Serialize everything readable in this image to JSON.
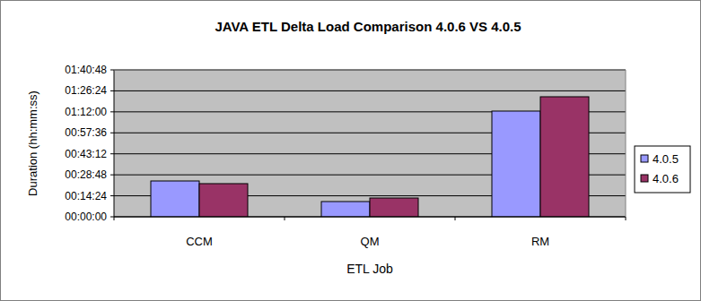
{
  "chart_data": {
    "type": "bar",
    "title": "JAVA ETL Delta Load Comparison 4.0.6 VS 4.0.5",
    "x_label": "ETL Job",
    "y_label": "Duration (hh:mm:ss)",
    "categories": [
      "CCM",
      "QM",
      "RM"
    ],
    "series": [
      {
        "name": "4.0.5",
        "color": "#9999ff",
        "values": [
          1475,
          627,
          4352
        ]
      },
      {
        "name": "4.0.6",
        "color": "#993366",
        "values": [
          1365,
          774,
          4942
        ]
      }
    ],
    "ylim": [
      0,
      6048
    ],
    "yticks": [
      {
        "value": 0,
        "label": "00:00:00"
      },
      {
        "value": 864,
        "label": "00:14:24"
      },
      {
        "value": 1728,
        "label": "00:28:48"
      },
      {
        "value": 2592,
        "label": "00:43:12"
      },
      {
        "value": 3456,
        "label": "00:57:36"
      },
      {
        "value": 4320,
        "label": "01:12:00"
      },
      {
        "value": 5184,
        "label": "01:26:24"
      },
      {
        "value": 6048,
        "label": "01:40:48"
      }
    ],
    "grid": true,
    "legend": "right"
  }
}
